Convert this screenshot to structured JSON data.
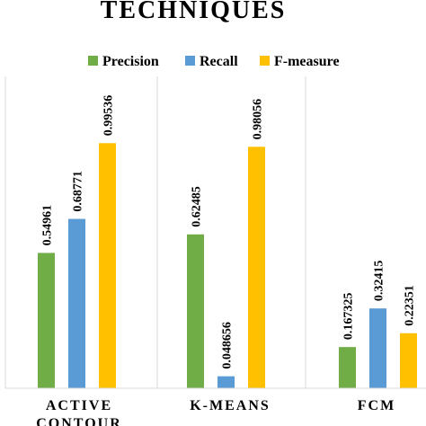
{
  "chart_data": {
    "type": "bar",
    "title": "TECHNIQUES",
    "categories": [
      "ACTIVE CONTOUR",
      "K-MEANS",
      "FCM"
    ],
    "series": [
      {
        "name": "Precision",
        "color": "#70AD47",
        "values": [
          0.54961,
          0.62485,
          0.167325
        ],
        "labels": [
          "0.54961",
          "0.62485",
          "0.167325"
        ]
      },
      {
        "name": "Recall",
        "color": "#5B9BD5",
        "values": [
          0.68771,
          0.048656,
          0.32415
        ],
        "labels": [
          "0.68771",
          "0.048656",
          "0.32415"
        ]
      },
      {
        "name": "F-measure",
        "color": "#FFC000",
        "values": [
          0.99536,
          0.98056,
          0.22351
        ],
        "labels": [
          "0.99536",
          "0.98056",
          "0.22351"
        ]
      }
    ],
    "ylim": [
      0,
      1.2
    ],
    "legend_position": "top",
    "grid": false,
    "xlabel": "",
    "ylabel": ""
  }
}
